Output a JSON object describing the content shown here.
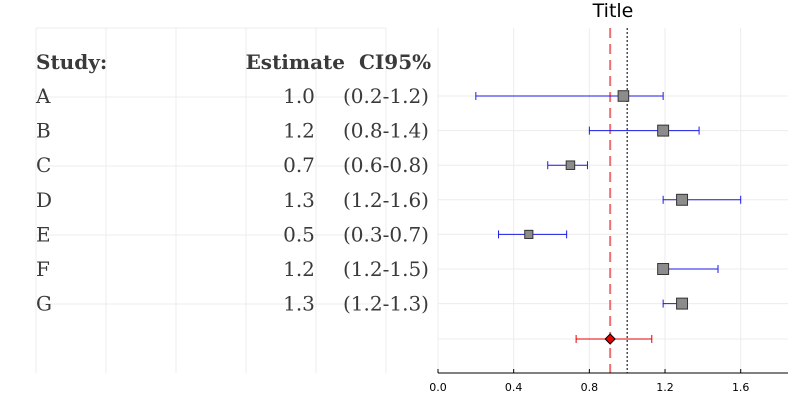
{
  "chart_data": {
    "type": "forest",
    "title": "Title",
    "table": {
      "headers": {
        "study": "Study:",
        "estimate": "Estimate",
        "ci": "CI95%"
      },
      "rows": [
        {
          "study": "A",
          "estimate": "1.0",
          "ci": "(0.2-1.2)"
        },
        {
          "study": "B",
          "estimate": "1.2",
          "ci": "(0.8-1.4)"
        },
        {
          "study": "C",
          "estimate": "0.7",
          "ci": "(0.6-0.8)"
        },
        {
          "study": "D",
          "estimate": "1.3",
          "ci": "(1.2-1.6)"
        },
        {
          "study": "E",
          "estimate": "0.5",
          "ci": "(0.3-0.7)"
        },
        {
          "study": "F",
          "estimate": "1.2",
          "ci": "(1.2-1.5)"
        },
        {
          "study": "G",
          "estimate": "1.3",
          "ci": "(1.2-1.3)"
        }
      ]
    },
    "points": [
      {
        "study": "A",
        "estimate": 0.98,
        "lower": 0.2,
        "upper": 1.19,
        "weight": 0.8
      },
      {
        "study": "B",
        "estimate": 1.19,
        "lower": 0.8,
        "upper": 1.38,
        "weight": 0.85
      },
      {
        "study": "C",
        "estimate": 0.7,
        "lower": 0.58,
        "upper": 0.79,
        "weight": 0.5
      },
      {
        "study": "D",
        "estimate": 1.29,
        "lower": 1.19,
        "upper": 1.6,
        "weight": 0.85
      },
      {
        "study": "E",
        "estimate": 0.48,
        "lower": 0.32,
        "upper": 0.68,
        "weight": 0.45
      },
      {
        "study": "F",
        "estimate": 1.19,
        "lower": 1.19,
        "upper": 1.48,
        "weight": 0.85
      },
      {
        "study": "G",
        "estimate": 1.29,
        "lower": 1.19,
        "upper": 1.29,
        "weight": 0.85
      }
    ],
    "summary": {
      "estimate": 0.91,
      "lower": 0.73,
      "upper": 1.13
    },
    "reference_lines": {
      "null_value": 1.0,
      "summary_value": 0.91
    },
    "xaxis": {
      "range": [
        0.0,
        1.85
      ],
      "ticks": [
        0.0,
        0.4,
        0.8,
        1.2,
        1.6
      ],
      "tick_labels": [
        "0.0",
        "0.4",
        "0.8",
        "1.2",
        "1.6"
      ]
    },
    "colors": {
      "ci_line": "#1a1ae6",
      "summary": "#e60000",
      "summary_line": "#f07070",
      "marker": "#8c8c8c",
      "marker_edge": "#333333",
      "grid": "#ececec"
    }
  }
}
